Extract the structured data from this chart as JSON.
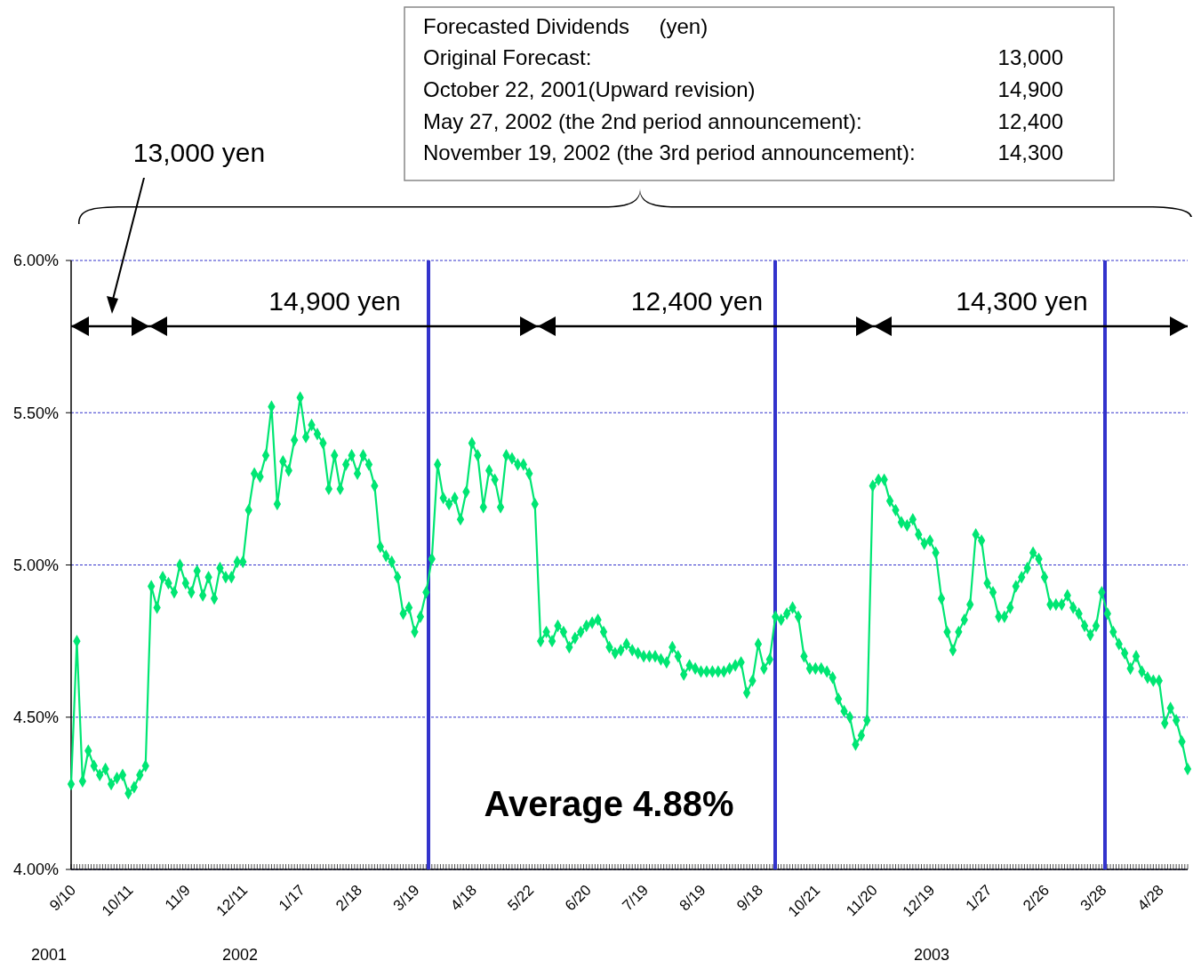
{
  "chart_data": {
    "type": "line",
    "annotations": [
      "Forecasted Dividends     (yen)",
      "Original Forecast:",
      "13,000",
      "October 22, 2001(Upward revision)",
      "14,900",
      "May 27, 2002 (the 2nd period announcement):",
      "12,400",
      "November 19, 2002 (the 3rd period announcement):",
      "14,300",
      "13,000 yen",
      "14,900 yen",
      "12,400 yen",
      "14,300 yen",
      "Average 4.88%",
      "2001",
      "2002",
      "2003"
    ],
    "categories": [
      "9/10",
      null,
      null,
      null,
      null,
      null,
      null,
      null,
      null,
      null,
      "10/11",
      null,
      null,
      null,
      null,
      null,
      null,
      null,
      null,
      null,
      "11/9",
      null,
      null,
      null,
      null,
      null,
      null,
      null,
      null,
      null,
      "12/11",
      null,
      null,
      null,
      null,
      null,
      null,
      null,
      null,
      null,
      "1/17",
      null,
      null,
      null,
      null,
      null,
      null,
      null,
      null,
      null,
      "2/18",
      null,
      null,
      null,
      null,
      null,
      null,
      null,
      null,
      null,
      "3/19",
      null,
      null,
      null,
      null,
      null,
      null,
      null,
      null,
      null,
      "4/18",
      null,
      null,
      null,
      null,
      null,
      null,
      null,
      null,
      null,
      "5/22",
      null,
      null,
      null,
      null,
      null,
      null,
      null,
      null,
      null,
      "6/20",
      null,
      null,
      null,
      null,
      null,
      null,
      null,
      null,
      null,
      "7/19",
      null,
      null,
      null,
      null,
      null,
      null,
      null,
      null,
      null,
      "8/19",
      null,
      null,
      null,
      null,
      null,
      null,
      null,
      null,
      null,
      "9/18",
      null,
      null,
      null,
      null,
      null,
      null,
      null,
      null,
      null,
      "10/21",
      null,
      null,
      null,
      null,
      null,
      null,
      null,
      null,
      null,
      "11/20",
      null,
      null,
      null,
      null,
      null,
      null,
      null,
      null,
      null,
      "12/19",
      null,
      null,
      null,
      null,
      null,
      null,
      null,
      null,
      null,
      "1/27",
      null,
      null,
      null,
      null,
      null,
      null,
      null,
      null,
      null,
      "2/26",
      null,
      null,
      null,
      null,
      null,
      null,
      null,
      null,
      null,
      "3/28",
      null,
      null,
      null,
      null,
      null,
      null,
      null,
      null,
      null,
      "4/28",
      null,
      null,
      null,
      null,
      null
    ],
    "series": [
      {
        "color": "#00e673",
        "values": [
          4.28,
          4.75,
          4.29,
          4.39,
          4.34,
          4.31,
          4.33,
          4.28,
          4.3,
          4.31,
          4.25,
          4.27,
          4.31,
          4.34,
          4.93,
          4.86,
          4.96,
          4.94,
          4.91,
          5.0,
          4.94,
          4.91,
          4.98,
          4.9,
          4.96,
          4.89,
          4.99,
          4.96,
          4.96,
          5.01,
          5.01,
          5.18,
          5.3,
          5.29,
          5.36,
          5.52,
          5.2,
          5.34,
          5.31,
          5.41,
          5.55,
          5.42,
          5.46,
          5.43,
          5.4,
          5.25,
          5.36,
          5.25,
          5.33,
          5.36,
          5.3,
          5.36,
          5.33,
          5.26,
          5.06,
          5.03,
          5.01,
          4.96,
          4.84,
          4.86,
          4.78,
          4.83,
          4.91,
          5.02,
          5.33,
          5.22,
          5.2,
          5.22,
          5.15,
          5.24,
          5.4,
          5.36,
          5.19,
          5.31,
          5.28,
          5.19,
          5.36,
          5.35,
          5.33,
          5.33,
          5.3,
          5.2,
          4.75,
          4.78,
          4.75,
          4.8,
          4.78,
          4.73,
          4.76,
          4.78,
          4.8,
          4.81,
          4.82,
          4.78,
          4.73,
          4.71,
          4.72,
          4.74,
          4.72,
          4.71,
          4.7,
          4.7,
          4.7,
          4.69,
          4.68,
          4.73,
          4.7,
          4.64,
          4.67,
          4.66,
          4.65,
          4.65,
          4.65,
          4.65,
          4.65,
          4.66,
          4.67,
          4.68,
          4.58,
          4.62,
          4.74,
          4.66,
          4.69,
          4.83,
          4.82,
          4.84,
          4.86,
          4.83,
          4.7,
          4.66,
          4.66,
          4.66,
          4.65,
          4.63,
          4.56,
          4.52,
          4.5,
          4.41,
          4.44,
          4.49,
          5.26,
          5.28,
          5.28,
          5.21,
          5.18,
          5.14,
          5.13,
          5.15,
          5.1,
          5.07,
          5.08,
          5.04,
          4.89,
          4.78,
          4.72,
          4.78,
          4.82,
          4.87,
          5.1,
          5.08,
          4.94,
          4.91,
          4.83,
          4.83,
          4.86,
          4.93,
          4.96,
          4.99,
          5.04,
          5.02,
          4.96,
          4.87,
          4.87,
          4.87,
          4.9,
          4.86,
          4.84,
          4.8,
          4.77,
          4.8,
          4.91,
          4.84,
          4.78,
          4.74,
          4.71,
          4.66,
          4.7,
          4.65,
          4.63,
          4.62,
          4.62,
          4.48,
          4.53,
          4.49,
          4.42,
          4.33
        ]
      }
    ],
    "ylim": [
      4,
      6
    ],
    "yticks": [
      {
        "value": 4,
        "label": "4.00%"
      },
      {
        "value": 4.5,
        "label": "4.50%"
      },
      {
        "value": 5,
        "label": "5.00%"
      },
      {
        "value": 5.5,
        "label": "5.50%"
      },
      {
        "value": 6,
        "label": "6.00%"
      }
    ],
    "grid": "y",
    "marker": "diamond",
    "line_style": "solid"
  }
}
